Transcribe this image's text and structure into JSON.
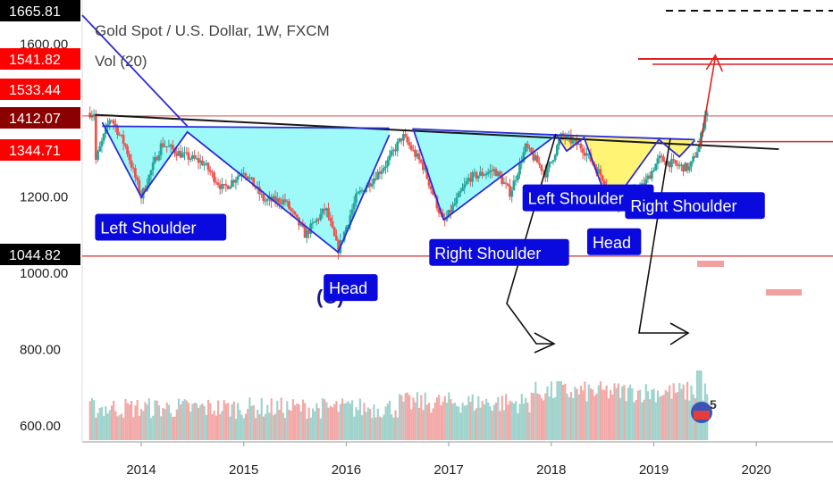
{
  "header": {
    "title": "Gold Spot / U.S. Dollar, 1W, FXCM",
    "indicator": "Vol (20)"
  },
  "colors": {
    "up": "#26a69a",
    "down": "#ef5350",
    "vol_up": "#9fd3cc",
    "vol_down": "#f3a9a7",
    "label_bg": "#0a0adf",
    "pattern_fill_1": "#7df7f7",
    "pattern_fill_2": "#fff25a",
    "pattern_line": "#2b2bd9",
    "trend_line": "#1a1a1a",
    "level_line": "#cc3333"
  },
  "price_tags": [
    {
      "value": "1665.81",
      "style": "dark"
    },
    {
      "value": "1541.82",
      "style": "red"
    },
    {
      "value": "1533.44",
      "style": "red"
    },
    {
      "value": "1412.07",
      "style": "dark"
    },
    {
      "value": "1344.71",
      "style": "red"
    },
    {
      "value": "1044.82",
      "style": "dark"
    }
  ],
  "chart_data": {
    "type": "candlestick",
    "title": "Gold Spot / U.S. Dollar, 1W, FXCM",
    "y_ticks": [
      600,
      800,
      1000,
      1200,
      1600
    ],
    "x_ticks": [
      "2014",
      "2015",
      "2016",
      "2017",
      "2018",
      "2019",
      "2020"
    ],
    "x_range": [
      2013.5,
      2020.75
    ],
    "price_path": [
      [
        2013.55,
        1290
      ],
      [
        2013.7,
        1410
      ],
      [
        2013.85,
        1330
      ],
      [
        2014.0,
        1200
      ],
      [
        2014.2,
        1340
      ],
      [
        2014.4,
        1310
      ],
      [
        2014.6,
        1290
      ],
      [
        2014.8,
        1220
      ],
      [
        2015.0,
        1270
      ],
      [
        2015.2,
        1190
      ],
      [
        2015.4,
        1190
      ],
      [
        2015.6,
        1100
      ],
      [
        2015.8,
        1170
      ],
      [
        2015.92,
        1060
      ],
      [
        2016.1,
        1200
      ],
      [
        2016.4,
        1290
      ],
      [
        2016.55,
        1360
      ],
      [
        2016.75,
        1280
      ],
      [
        2016.95,
        1130
      ],
      [
        2017.2,
        1250
      ],
      [
        2017.45,
        1270
      ],
      [
        2017.6,
        1210
      ],
      [
        2017.75,
        1330
      ],
      [
        2017.95,
        1260
      ],
      [
        2018.1,
        1360
      ],
      [
        2018.3,
        1330
      ],
      [
        2018.5,
        1250
      ],
      [
        2018.65,
        1180
      ],
      [
        2018.9,
        1230
      ],
      [
        2019.05,
        1300
      ],
      [
        2019.25,
        1280
      ],
      [
        2019.35,
        1275
      ],
      [
        2019.45,
        1340
      ],
      [
        2019.5,
        1420
      ]
    ],
    "volume_spikes": [
      {
        "x": 2018.07,
        "level": 0.55
      },
      {
        "x": 2019.45,
        "level": 0.65
      }
    ],
    "price_levels": [
      1412.07,
      1344.71,
      1044.82
    ],
    "pattern_labels": [
      {
        "text": "Left Shoulder",
        "x": 2013.55,
        "y": 1118
      },
      {
        "text": "Head",
        "x": 2015.78,
        "y": 960
      },
      {
        "text": "Right Shoulder",
        "x": 2016.81,
        "y": 1052
      },
      {
        "text": "Left Shoulder",
        "x": 2017.72,
        "y": 1195
      },
      {
        "text": "Head",
        "x": 2018.35,
        "y": 1080
      },
      {
        "text": "Right Shoulder",
        "x": 2018.72,
        "y": 1175
      }
    ],
    "annotation_text": "(C)",
    "volume_badge": "5"
  }
}
